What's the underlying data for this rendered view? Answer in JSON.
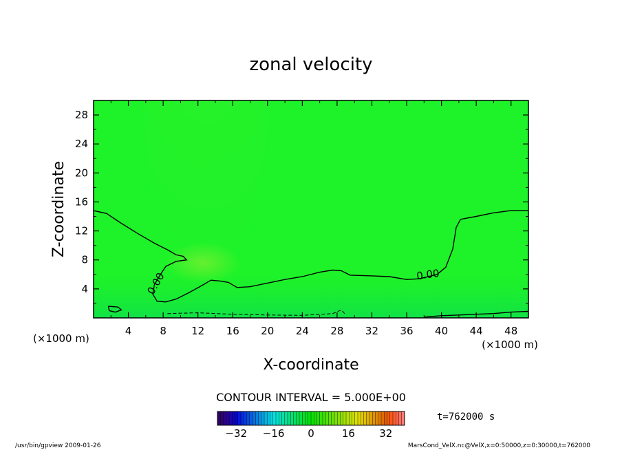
{
  "chart_data": {
    "type": "heatmap",
    "title": "zonal velocity",
    "xlabel": "X-coordinate",
    "ylabel": "Z-coordinate",
    "x_unit_label": "(×1000 m)",
    "x_unit_label_right": "(×1000 m)",
    "xlim": [
      0,
      50
    ],
    "ylim": [
      0,
      30
    ],
    "x_ticks": [
      "4",
      "8",
      "12",
      "16",
      "20",
      "24",
      "28",
      "32",
      "36",
      "40",
      "44",
      "48"
    ],
    "y_ticks": [
      "4",
      "8",
      "12",
      "16",
      "20",
      "24",
      "28"
    ],
    "contour_interval_text": "CONTOUR INTERVAL = 5.000E+00",
    "contour_labels": [
      {
        "text": "0.00",
        "x": 7.5,
        "y": 4.5,
        "angle": -60
      },
      {
        "text": "0.00",
        "x": 38.5,
        "y": 5.5,
        "angle": -8
      }
    ],
    "zero_contour_upper": [
      [
        0,
        14.8
      ],
      [
        1.5,
        14.4
      ],
      [
        3,
        13.2
      ],
      [
        5,
        11.7
      ],
      [
        7,
        10.3
      ],
      [
        8.5,
        9.4
      ],
      [
        9.5,
        8.7
      ],
      [
        10.3,
        8.5
      ],
      [
        10.7,
        8.0
      ],
      [
        9.5,
        7.8
      ],
      [
        8.3,
        7.1
      ],
      [
        7.7,
        6.0
      ],
      [
        7,
        4.6
      ],
      [
        6.8,
        3.3
      ],
      [
        7.3,
        2.3
      ],
      [
        8.3,
        2.2
      ],
      [
        9.5,
        2.6
      ],
      [
        11,
        3.5
      ],
      [
        12.5,
        4.5
      ],
      [
        13.5,
        5.2
      ],
      [
        14.5,
        5.1
      ],
      [
        15.5,
        4.9
      ],
      [
        16.5,
        4.2
      ],
      [
        18,
        4.3
      ],
      [
        20,
        4.8
      ],
      [
        22,
        5.3
      ],
      [
        24,
        5.7
      ],
      [
        26,
        6.3
      ],
      [
        27.5,
        6.6
      ],
      [
        28.5,
        6.5
      ],
      [
        29.5,
        5.9
      ],
      [
        32,
        5.8
      ],
      [
        34,
        5.7
      ],
      [
        36,
        5.3
      ],
      [
        37.5,
        5.4
      ],
      [
        39.5,
        6.0
      ],
      [
        40.5,
        7.0
      ],
      [
        41.3,
        9.5
      ],
      [
        41.7,
        12.5
      ],
      [
        42.2,
        13.6
      ],
      [
        44,
        14.0
      ],
      [
        46,
        14.5
      ],
      [
        48,
        14.8
      ],
      [
        50,
        14.8
      ]
    ],
    "zero_contour_lower": [
      [
        38,
        0.1
      ],
      [
        40,
        0.3
      ],
      [
        42,
        0.4
      ],
      [
        44,
        0.5
      ],
      [
        46,
        0.6
      ],
      [
        48,
        0.8
      ],
      [
        50,
        0.9
      ]
    ],
    "negative_contour": [
      [
        8.5,
        0.6
      ],
      [
        12,
        0.7
      ],
      [
        16,
        0.5
      ],
      [
        20,
        0.4
      ],
      [
        24,
        0.35
      ],
      [
        27.5,
        0.6
      ],
      [
        28.5,
        1.1
      ],
      [
        29,
        0.4
      ]
    ],
    "closed_contour": [
      [
        1.7,
        1.6
      ],
      [
        2.8,
        1.5
      ],
      [
        3.2,
        1.1
      ],
      [
        2.5,
        0.8
      ],
      [
        1.8,
        1.0
      ],
      [
        1.7,
        1.6
      ]
    ],
    "colorbar": {
      "ticks": [
        "−32",
        "−16",
        "0",
        "16",
        "32"
      ],
      "min": -40,
      "max": 40
    },
    "time_label": "t=762000 s"
  },
  "footer": {
    "left": "/usr/bin/gpview  2009-01-26",
    "right": "MarsCond_VelX.nc@VelX,x=0:50000,z=0:30000,t=762000"
  },
  "colors": {
    "field": "#1ef229",
    "frame": "#000000"
  }
}
